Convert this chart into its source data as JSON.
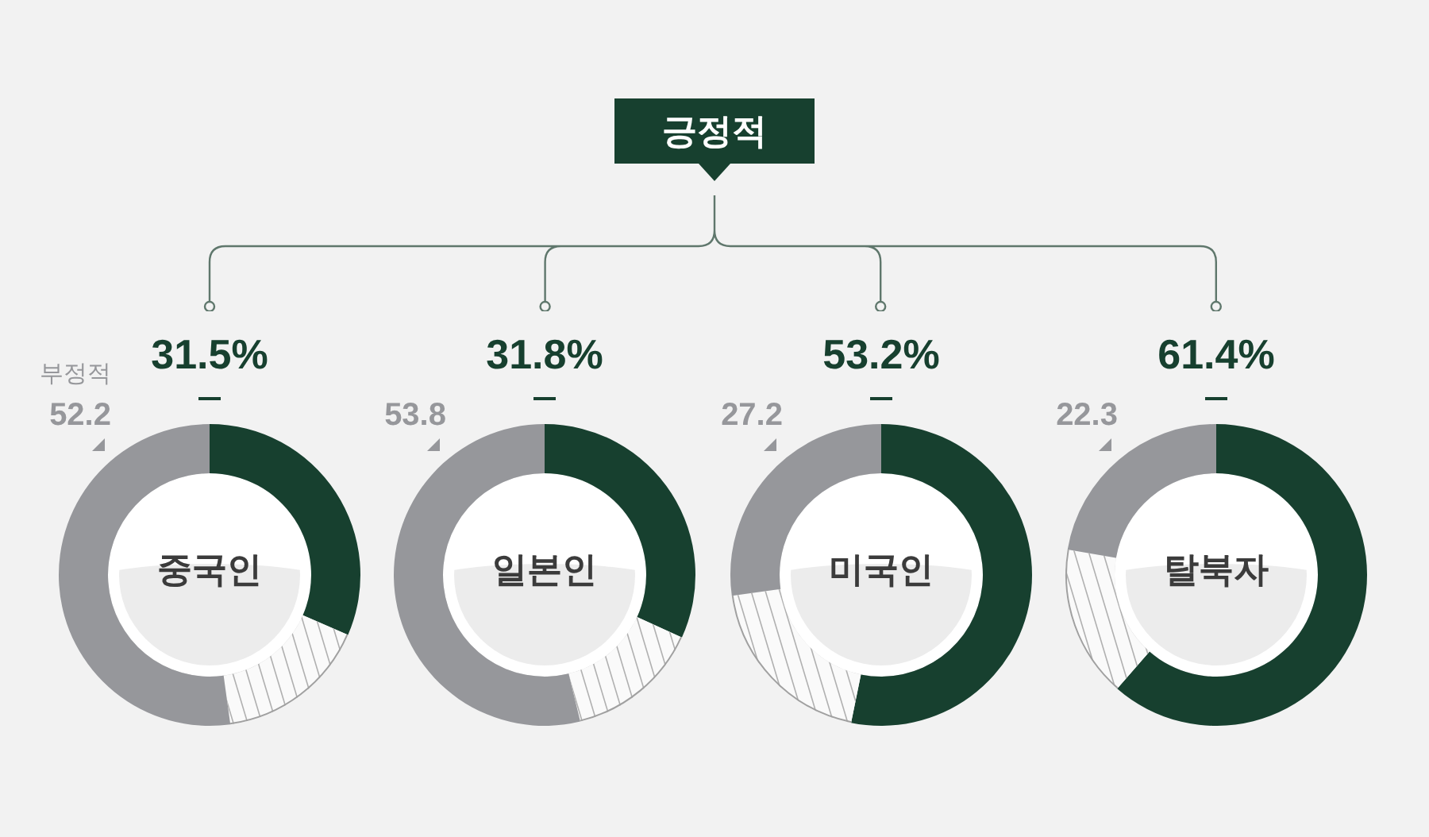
{
  "chart_data": [
    {
      "type": "donut",
      "title": "중국인",
      "categories": [
        null,
        null,
        "부정적"
      ],
      "values": [
        31.5,
        16.3,
        52.2
      ],
      "colors": [
        "#17402f",
        "#fafafa",
        "#96979b"
      ],
      "value_labels": [
        "31.5%",
        null,
        "52.2"
      ],
      "annotations": [
        "긍정적"
      ]
    },
    {
      "type": "donut",
      "title": "일본인",
      "categories": [
        null,
        null,
        null
      ],
      "values": [
        31.8,
        14.4,
        53.8
      ],
      "colors": [
        "#17402f",
        "#fafafa",
        "#96979b"
      ],
      "value_labels": [
        "31.8%",
        null,
        "53.8"
      ]
    },
    {
      "type": "donut",
      "title": "미국인",
      "categories": [
        null,
        null,
        null
      ],
      "values": [
        53.2,
        19.6,
        27.2
      ],
      "colors": [
        "#17402f",
        "#fafafa",
        "#96979b"
      ],
      "value_labels": [
        "53.2%",
        null,
        "27.2"
      ]
    },
    {
      "type": "donut",
      "title": "탈북자",
      "categories": [
        null,
        null,
        null
      ],
      "values": [
        61.4,
        16.3,
        22.3
      ],
      "colors": [
        "#17402f",
        "#fafafa",
        "#96979b"
      ],
      "value_labels": [
        "61.4%",
        null,
        "22.3"
      ]
    }
  ]
}
